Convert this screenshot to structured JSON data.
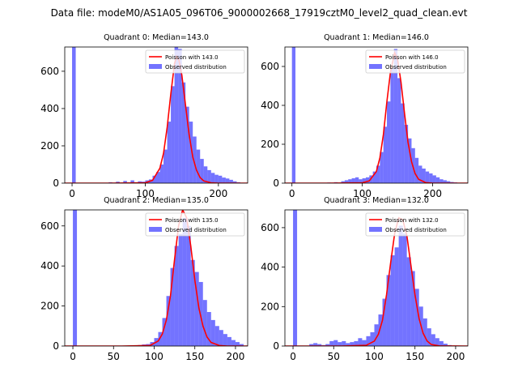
{
  "suptitle": "Data file: modeM0/AS1A05_096T06_9000002668_17919cztM0_level2_quad_clean.evt",
  "colors": {
    "hist": "#0000ff",
    "poisson": "#ff0000"
  },
  "chart_data": [
    {
      "type": "bar",
      "title": "Quadrant 0: Median=143.0",
      "legend": {
        "placement": "top-right",
        "entries": [
          "Poisson with 143.0",
          "Observed distribution"
        ]
      },
      "xlim": [
        -10,
        240
      ],
      "ylim": [
        0,
        730
      ],
      "xticks": [
        0,
        100,
        200
      ],
      "yticks": [
        0,
        200,
        400,
        600
      ],
      "median": 143.0,
      "bars": [
        [
          0,
          730
        ],
        [
          20,
          2
        ],
        [
          50,
          5
        ],
        [
          60,
          8
        ],
        [
          70,
          12
        ],
        [
          80,
          15
        ],
        [
          90,
          10
        ],
        [
          95,
          8
        ],
        [
          100,
          15
        ],
        [
          105,
          20
        ],
        [
          110,
          40
        ],
        [
          115,
          60
        ],
        [
          120,
          100
        ],
        [
          125,
          180
        ],
        [
          130,
          330
        ],
        [
          135,
          520
        ],
        [
          140,
          730
        ],
        [
          145,
          720
        ],
        [
          150,
          540
        ],
        [
          155,
          410
        ],
        [
          160,
          330
        ],
        [
          165,
          250
        ],
        [
          170,
          180
        ],
        [
          175,
          130
        ],
        [
          180,
          90
        ],
        [
          185,
          70
        ],
        [
          190,
          55
        ],
        [
          195,
          45
        ],
        [
          200,
          40
        ],
        [
          205,
          30
        ],
        [
          210,
          25
        ],
        [
          215,
          18
        ],
        [
          220,
          10
        ],
        [
          225,
          5
        ]
      ],
      "bin_width": 5,
      "poisson": [
        [
          -10,
          0
        ],
        [
          50,
          0
        ],
        [
          100,
          2
        ],
        [
          110,
          15
        ],
        [
          120,
          80
        ],
        [
          125,
          160
        ],
        [
          130,
          300
        ],
        [
          135,
          480
        ],
        [
          140,
          640
        ],
        [
          143,
          680
        ],
        [
          146,
          660
        ],
        [
          150,
          580
        ],
        [
          155,
          420
        ],
        [
          160,
          260
        ],
        [
          165,
          140
        ],
        [
          170,
          70
        ],
        [
          175,
          30
        ],
        [
          180,
          12
        ],
        [
          190,
          2
        ],
        [
          200,
          0
        ],
        [
          240,
          0
        ]
      ]
    },
    {
      "type": "bar",
      "title": "Quadrant 1: Median=146.0",
      "legend": {
        "placement": "top-right",
        "entries": [
          "Poisson with 146.0",
          "Observed distribution"
        ]
      },
      "xlim": [
        -10,
        250
      ],
      "ylim": [
        0,
        700
      ],
      "xticks": [
        0,
        100,
        200
      ],
      "yticks": [
        0,
        200,
        400,
        600
      ],
      "median": 146.0,
      "bars": [
        [
          0,
          700
        ],
        [
          50,
          3
        ],
        [
          60,
          5
        ],
        [
          70,
          10
        ],
        [
          75,
          15
        ],
        [
          80,
          20
        ],
        [
          85,
          25
        ],
        [
          90,
          30
        ],
        [
          95,
          20
        ],
        [
          100,
          25
        ],
        [
          105,
          30
        ],
        [
          110,
          40
        ],
        [
          115,
          60
        ],
        [
          120,
          90
        ],
        [
          125,
          160
        ],
        [
          130,
          290
        ],
        [
          135,
          420
        ],
        [
          140,
          590
        ],
        [
          145,
          690
        ],
        [
          150,
          540
        ],
        [
          155,
          410
        ],
        [
          160,
          300
        ],
        [
          165,
          230
        ],
        [
          170,
          180
        ],
        [
          175,
          130
        ],
        [
          180,
          90
        ],
        [
          185,
          75
        ],
        [
          190,
          60
        ],
        [
          195,
          50
        ],
        [
          200,
          40
        ],
        [
          205,
          30
        ],
        [
          210,
          20
        ],
        [
          215,
          15
        ],
        [
          220,
          10
        ],
        [
          225,
          6
        ],
        [
          230,
          4
        ],
        [
          235,
          2
        ]
      ],
      "bin_width": 5,
      "poisson": [
        [
          -10,
          0
        ],
        [
          50,
          0
        ],
        [
          100,
          2
        ],
        [
          110,
          12
        ],
        [
          120,
          60
        ],
        [
          125,
          130
        ],
        [
          130,
          250
        ],
        [
          135,
          420
        ],
        [
          140,
          570
        ],
        [
          146,
          670
        ],
        [
          150,
          640
        ],
        [
          155,
          520
        ],
        [
          160,
          360
        ],
        [
          165,
          210
        ],
        [
          170,
          110
        ],
        [
          175,
          50
        ],
        [
          180,
          20
        ],
        [
          190,
          3
        ],
        [
          200,
          0
        ],
        [
          250,
          0
        ]
      ]
    },
    {
      "type": "bar",
      "title": "Quadrant 2: Median=135.0",
      "legend": {
        "placement": "top-right",
        "entries": [
          "Poisson with 135.0",
          "Observed distribution"
        ]
      },
      "xlim": [
        -10,
        215
      ],
      "ylim": [
        0,
        680
      ],
      "xticks": [
        0,
        50,
        100,
        150,
        200
      ],
      "yticks": [
        0,
        200,
        400,
        600
      ],
      "median": 135.0,
      "bars": [
        [
          0,
          680
        ],
        [
          70,
          2
        ],
        [
          80,
          5
        ],
        [
          85,
          8
        ],
        [
          90,
          10
        ],
        [
          95,
          20
        ],
        [
          100,
          40
        ],
        [
          105,
          70
        ],
        [
          110,
          140
        ],
        [
          115,
          250
        ],
        [
          120,
          390
        ],
        [
          125,
          500
        ],
        [
          130,
          560
        ],
        [
          135,
          640
        ],
        [
          140,
          600
        ],
        [
          145,
          430
        ],
        [
          150,
          370
        ],
        [
          155,
          320
        ],
        [
          160,
          230
        ],
        [
          165,
          170
        ],
        [
          170,
          130
        ],
        [
          175,
          100
        ],
        [
          180,
          80
        ],
        [
          185,
          60
        ],
        [
          190,
          45
        ],
        [
          195,
          30
        ],
        [
          200,
          20
        ],
        [
          205,
          10
        ]
      ],
      "bin_width": 5,
      "poisson": [
        [
          -10,
          0
        ],
        [
          60,
          0
        ],
        [
          95,
          3
        ],
        [
          105,
          25
        ],
        [
          110,
          60
        ],
        [
          115,
          130
        ],
        [
          120,
          250
        ],
        [
          125,
          430
        ],
        [
          130,
          600
        ],
        [
          135,
          680
        ],
        [
          140,
          640
        ],
        [
          145,
          500
        ],
        [
          150,
          330
        ],
        [
          155,
          190
        ],
        [
          160,
          100
        ],
        [
          165,
          45
        ],
        [
          170,
          18
        ],
        [
          180,
          3
        ],
        [
          190,
          0
        ],
        [
          215,
          0
        ]
      ]
    },
    {
      "type": "bar",
      "title": "Quadrant 3: Median=132.0",
      "legend": {
        "placement": "top-right",
        "entries": [
          "Poisson with 132.0",
          "Observed distribution"
        ]
      },
      "xlim": [
        -10,
        215
      ],
      "ylim": [
        0,
        690
      ],
      "xticks": [
        0,
        50,
        100,
        150,
        200
      ],
      "yticks": [
        0,
        200,
        400,
        600
      ],
      "median": 132.0,
      "bars": [
        [
          0,
          690
        ],
        [
          20,
          10
        ],
        [
          25,
          15
        ],
        [
          30,
          10
        ],
        [
          35,
          5
        ],
        [
          40,
          10
        ],
        [
          45,
          25
        ],
        [
          50,
          30
        ],
        [
          55,
          20
        ],
        [
          60,
          25
        ],
        [
          65,
          15
        ],
        [
          70,
          20
        ],
        [
          75,
          25
        ],
        [
          80,
          40
        ],
        [
          85,
          30
        ],
        [
          90,
          50
        ],
        [
          95,
          70
        ],
        [
          100,
          110
        ],
        [
          105,
          160
        ],
        [
          110,
          240
        ],
        [
          115,
          360
        ],
        [
          120,
          460
        ],
        [
          125,
          500
        ],
        [
          130,
          610
        ],
        [
          135,
          570
        ],
        [
          140,
          450
        ],
        [
          145,
          380
        ],
        [
          150,
          290
        ],
        [
          155,
          200
        ],
        [
          160,
          140
        ],
        [
          165,
          90
        ],
        [
          170,
          60
        ],
        [
          175,
          40
        ],
        [
          180,
          25
        ],
        [
          185,
          12
        ],
        [
          190,
          5
        ]
      ],
      "bin_width": 5,
      "poisson": [
        [
          -10,
          0
        ],
        [
          60,
          0
        ],
        [
          90,
          4
        ],
        [
          100,
          25
        ],
        [
          105,
          60
        ],
        [
          110,
          130
        ],
        [
          115,
          260
        ],
        [
          120,
          420
        ],
        [
          125,
          570
        ],
        [
          130,
          650
        ],
        [
          135,
          640
        ],
        [
          140,
          560
        ],
        [
          145,
          410
        ],
        [
          150,
          260
        ],
        [
          155,
          140
        ],
        [
          160,
          65
        ],
        [
          165,
          25
        ],
        [
          170,
          8
        ],
        [
          180,
          1
        ],
        [
          215,
          0
        ]
      ]
    }
  ]
}
